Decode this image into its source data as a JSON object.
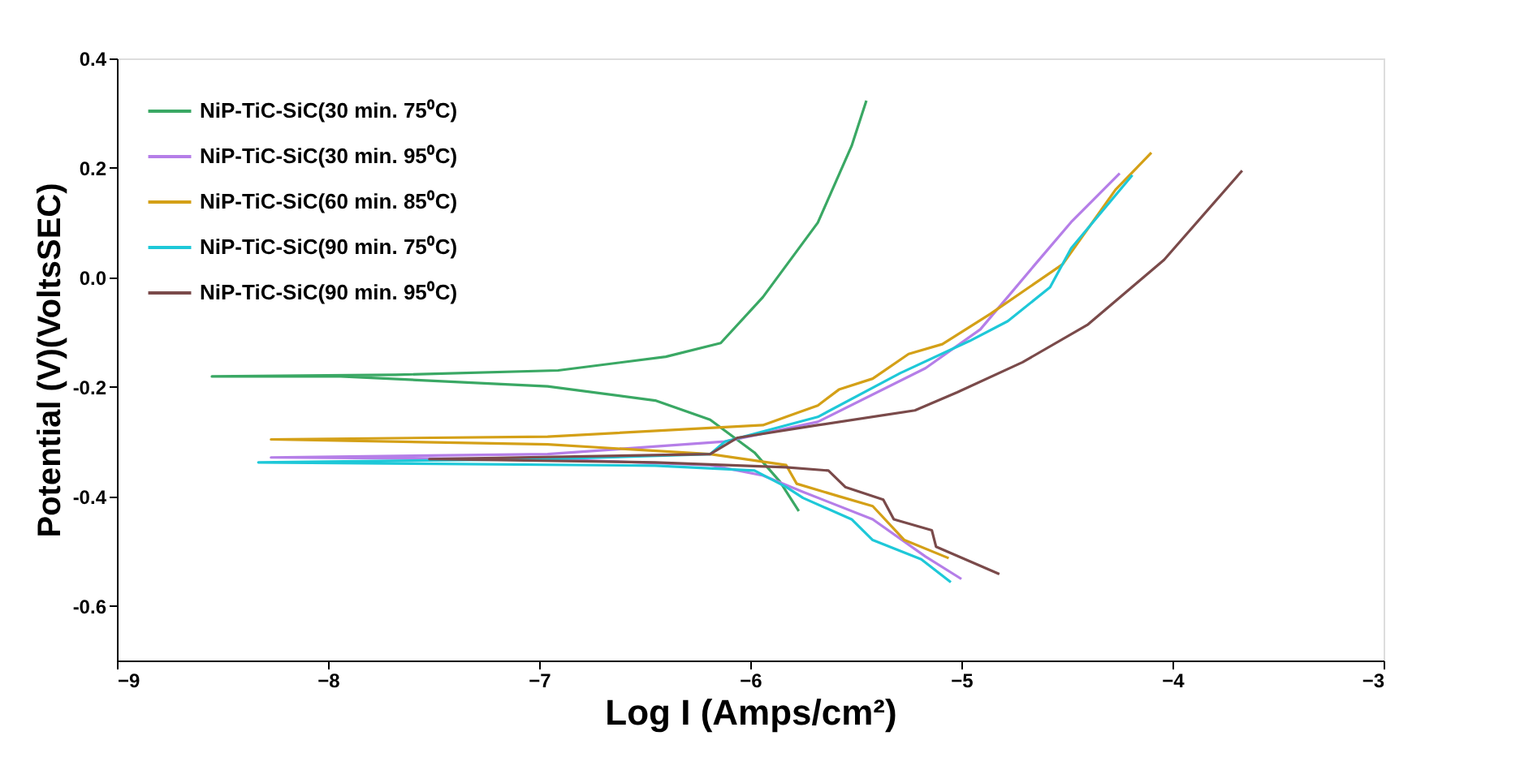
{
  "chart_data": {
    "type": "line",
    "xlabel": "Log I (Amps/cm²)",
    "ylabel": "Potential (V)(VoltsSEC)",
    "xlim": [
      -9,
      -3
    ],
    "xticks": [
      -9,
      -8,
      -7,
      -6,
      -5,
      -4,
      -3
    ],
    "ylim": [
      -0.7,
      0.4
    ],
    "yticks": [
      -0.6,
      -0.4,
      -0.2,
      {
        "value": 0,
        "label": "0.0"
      },
      0.2,
      0.4
    ],
    "grid": false,
    "legend": "top left",
    "marker": "none",
    "line_style": "solid",
    "series": [
      {
        "name": "NiP-TiC-SiC(30 min. 75⁰C)",
        "color": "#3aa864",
        "x": [
          -5.77,
          -5.86,
          -5.98,
          -6.19,
          -6.45,
          -6.96,
          -7.94,
          -8.55,
          -7.68,
          -6.91,
          -6.4,
          -6.14,
          -5.94,
          -5.68,
          -5.52,
          -5.45
        ],
        "values": [
          -0.427,
          -0.373,
          -0.32,
          -0.26,
          -0.225,
          -0.199,
          -0.181,
          -0.181,
          -0.178,
          -0.17,
          -0.145,
          -0.12,
          -0.036,
          0.1,
          0.24,
          0.323
        ]
      },
      {
        "name": "NiP-TiC-SiC(30 min. 95⁰C)",
        "color": "#b57ee8",
        "x": [
          -5.0,
          -5.17,
          -5.42,
          -5.75,
          -5.94,
          -6.19,
          -6.96,
          -8.27,
          -6.96,
          -6.12,
          -5.68,
          -5.17,
          -4.91,
          -4.65,
          -4.48,
          -4.25
        ],
        "values": [
          -0.551,
          -0.51,
          -0.442,
          -0.392,
          -0.362,
          -0.343,
          -0.332,
          -0.329,
          -0.323,
          -0.3,
          -0.264,
          -0.166,
          -0.095,
          0.024,
          0.101,
          0.19
        ]
      },
      {
        "name": "NiP-TiC-SiC(60 min. 85⁰C)",
        "color": "#d4a017",
        "x": [
          -5.06,
          -5.27,
          -5.42,
          -5.58,
          -5.78,
          -5.83,
          -6.19,
          -6.96,
          -8.27,
          -6.96,
          -5.94,
          -5.68,
          -5.58,
          -5.42,
          -5.25,
          -5.09,
          -4.86,
          -4.52,
          -4.27,
          -4.1
        ],
        "values": [
          -0.513,
          -0.48,
          -0.418,
          -0.4,
          -0.377,
          -0.343,
          -0.323,
          -0.305,
          -0.296,
          -0.291,
          -0.27,
          -0.234,
          -0.205,
          -0.185,
          -0.14,
          -0.122,
          -0.066,
          0.024,
          0.16,
          0.228
        ]
      },
      {
        "name": "NiP-TiC-SiC(90 min. 75⁰C)",
        "color": "#1ec8d8",
        "x": [
          -5.05,
          -5.19,
          -5.42,
          -5.52,
          -5.75,
          -5.83,
          -5.98,
          -6.45,
          -8.33,
          -6.96,
          -6.19,
          -6.12,
          -5.68,
          -5.29,
          -4.96,
          -4.78,
          -4.58,
          -4.48,
          -4.19
        ],
        "values": [
          -0.557,
          -0.515,
          -0.48,
          -0.442,
          -0.403,
          -0.383,
          -0.353,
          -0.344,
          -0.338,
          -0.332,
          -0.323,
          -0.3,
          -0.255,
          -0.175,
          -0.116,
          -0.08,
          -0.018,
          0.053,
          0.187
        ]
      },
      {
        "name": "NiP-TiC-SiC(90 min. 95⁰C)",
        "color": "#7a4a4a",
        "x": [
          -4.82,
          -5.12,
          -5.14,
          -5.32,
          -5.37,
          -5.55,
          -5.63,
          -5.83,
          -6.45,
          -7.52,
          -6.19,
          -6.06,
          -5.68,
          -5.22,
          -5.02,
          -4.71,
          -4.4,
          -4.04,
          -3.67
        ],
        "values": [
          -0.542,
          -0.492,
          -0.462,
          -0.442,
          -0.406,
          -0.383,
          -0.353,
          -0.347,
          -0.338,
          -0.332,
          -0.323,
          -0.293,
          -0.27,
          -0.243,
          -0.21,
          -0.155,
          -0.086,
          0.032,
          0.195
        ]
      }
    ]
  }
}
